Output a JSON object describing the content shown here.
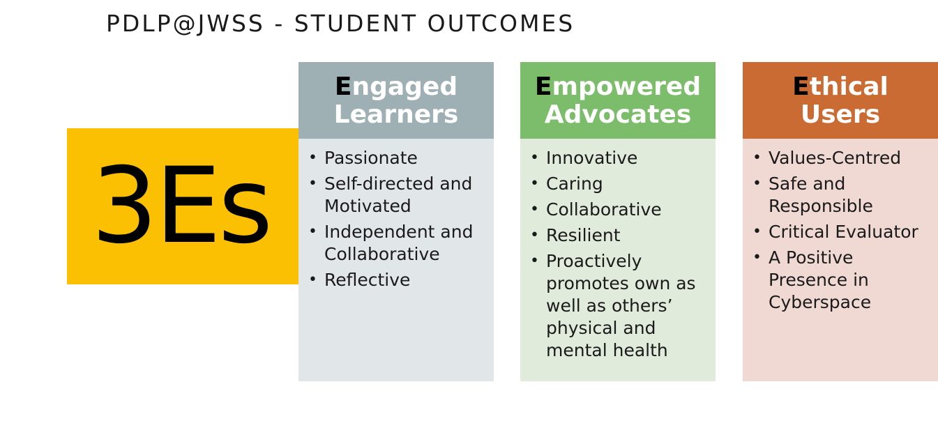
{
  "title": "PDLP@JWSS - STUDENT OUTCOMES",
  "badge": {
    "text": "3Es",
    "color": "#fbc002"
  },
  "columns": [
    {
      "initial": "E",
      "head_rest": "ngaged",
      "head_line2": "Learners",
      "header_color": "#9fb0b4",
      "body_color": "#e1e6e8",
      "items": [
        "Passionate",
        "Self-directed and Motivated",
        "Independent and Collaborative",
        "Reflective"
      ]
    },
    {
      "initial": "E",
      "head_rest": "mpowered",
      "head_line2": "Advocates",
      "header_color": "#7cbd6b",
      "body_color": "#e0ebdb",
      "items": [
        "Innovative",
        "Caring",
        "Collaborative",
        "Resilient",
        "Proactively promotes own as well as others’ physical and mental health"
      ]
    },
    {
      "initial": "E",
      "head_rest": "thical",
      "head_line2": "Users",
      "header_color": "#c96b32",
      "body_color": "#f0d9d3",
      "items": [
        "Values-Centred",
        "Safe and Responsible",
        "Critical Evaluator",
        "A Positive Presence in Cyberspace"
      ]
    }
  ]
}
